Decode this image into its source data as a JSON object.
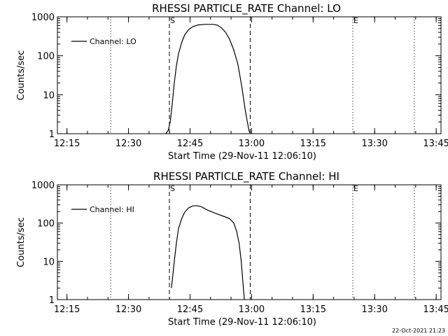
{
  "footer": {
    "timestamp": "22-Oct-2021 21:23"
  },
  "chart_data": [
    {
      "type": "line",
      "title": "RHESSI PARTICLE_RATE Channel: LO",
      "xlabel": "Start Time (29-Nov-11 12:06:10)",
      "ylabel": "Counts/sec",
      "yscale": "log",
      "xlim": [
        6.5,
        100
      ],
      "ylim": [
        1,
        1000
      ],
      "x_unit": "minutes after 12:06:10",
      "x_ticks": [
        {
          "x": 8.83,
          "label": "12:15"
        },
        {
          "x": 23.83,
          "label": "12:30"
        },
        {
          "x": 38.83,
          "label": "12:45"
        },
        {
          "x": 53.83,
          "label": "13:00"
        },
        {
          "x": 68.83,
          "label": "13:15"
        },
        {
          "x": 83.83,
          "label": "13:30"
        },
        {
          "x": 98.83,
          "label": "13:45"
        }
      ],
      "y_ticks": [
        {
          "y": 1,
          "label": "1"
        },
        {
          "y": 10,
          "label": "10"
        },
        {
          "y": 100,
          "label": "100"
        },
        {
          "y": 1000,
          "label": "1000"
        }
      ],
      "legend": {
        "label": "Channel: LO",
        "position": "top-left"
      },
      "vlines": [
        {
          "x": 19.5,
          "style": "dotted"
        },
        {
          "x": 33.8,
          "style": "dashed",
          "label": "S"
        },
        {
          "x": 53.5,
          "style": "dashed"
        },
        {
          "x": 78.5,
          "style": "dotted",
          "label": "E"
        },
        {
          "x": 93.5,
          "style": "dotted"
        }
      ],
      "series": [
        {
          "name": "Channel: LO",
          "points": [
            [
              32.9,
              0.5
            ],
            [
              32.9,
              1
            ],
            [
              33.5,
              1.2
            ],
            [
              34.0,
              2
            ],
            [
              34.5,
              6
            ],
            [
              35.0,
              20
            ],
            [
              35.5,
              55
            ],
            [
              36.0,
              110
            ],
            [
              36.8,
              220
            ],
            [
              37.5,
              340
            ],
            [
              38.5,
              470
            ],
            [
              39.5,
              560
            ],
            [
              40.8,
              620
            ],
            [
              42.5,
              640
            ],
            [
              44.5,
              640
            ],
            [
              45.5,
              610
            ],
            [
              46.5,
              520
            ],
            [
              47.5,
              400
            ],
            [
              48.5,
              260
            ],
            [
              49.5,
              140
            ],
            [
              50.5,
              60
            ],
            [
              51.5,
              15
            ],
            [
              52.3,
              4
            ],
            [
              52.8,
              2
            ],
            [
              53.2,
              1.2
            ],
            [
              53.5,
              1
            ],
            [
              53.7,
              0.5
            ]
          ]
        }
      ]
    },
    {
      "type": "line",
      "title": "RHESSI PARTICLE_RATE Channel: HI",
      "xlabel": "Start Time (29-Nov-11 12:06:10)",
      "ylabel": "Counts/sec",
      "yscale": "log",
      "xlim": [
        6.5,
        100
      ],
      "ylim": [
        1,
        1000
      ],
      "x_unit": "minutes after 12:06:10",
      "x_ticks": [
        {
          "x": 8.83,
          "label": "12:15"
        },
        {
          "x": 23.83,
          "label": "12:30"
        },
        {
          "x": 38.83,
          "label": "12:45"
        },
        {
          "x": 53.83,
          "label": "13:00"
        },
        {
          "x": 68.83,
          "label": "13:15"
        },
        {
          "x": 83.83,
          "label": "13:30"
        },
        {
          "x": 98.83,
          "label": "13:45"
        }
      ],
      "y_ticks": [
        {
          "y": 1,
          "label": "1"
        },
        {
          "y": 10,
          "label": "10"
        },
        {
          "y": 100,
          "label": "100"
        },
        {
          "y": 1000,
          "label": "1000"
        }
      ],
      "legend": {
        "label": "Channel: HI",
        "position": "top-left"
      },
      "vlines": [
        {
          "x": 19.5,
          "style": "dotted"
        },
        {
          "x": 33.8,
          "style": "dashed",
          "label": "S"
        },
        {
          "x": 53.5,
          "style": "dashed"
        },
        {
          "x": 78.5,
          "style": "dotted",
          "label": "E"
        },
        {
          "x": 93.5,
          "style": "dotted"
        }
      ],
      "series": [
        {
          "name": "Channel: HI",
          "points": [
            [
              34.3,
              2
            ],
            [
              34.6,
              4
            ],
            [
              35.0,
              10
            ],
            [
              35.5,
              30
            ],
            [
              36.0,
              70
            ],
            [
              36.8,
              130
            ],
            [
              37.5,
              190
            ],
            [
              38.5,
              250
            ],
            [
              39.5,
              280
            ],
            [
              40.5,
              285
            ],
            [
              41.5,
              270
            ],
            [
              43.0,
              220
            ],
            [
              45.0,
              180
            ],
            [
              47.0,
              150
            ],
            [
              48.5,
              130
            ],
            [
              49.5,
              100
            ],
            [
              50.2,
              60
            ],
            [
              50.8,
              30
            ],
            [
              51.3,
              10
            ],
            [
              51.7,
              3
            ],
            [
              52.0,
              1.2
            ],
            [
              52.2,
              0.5
            ]
          ]
        }
      ]
    }
  ]
}
